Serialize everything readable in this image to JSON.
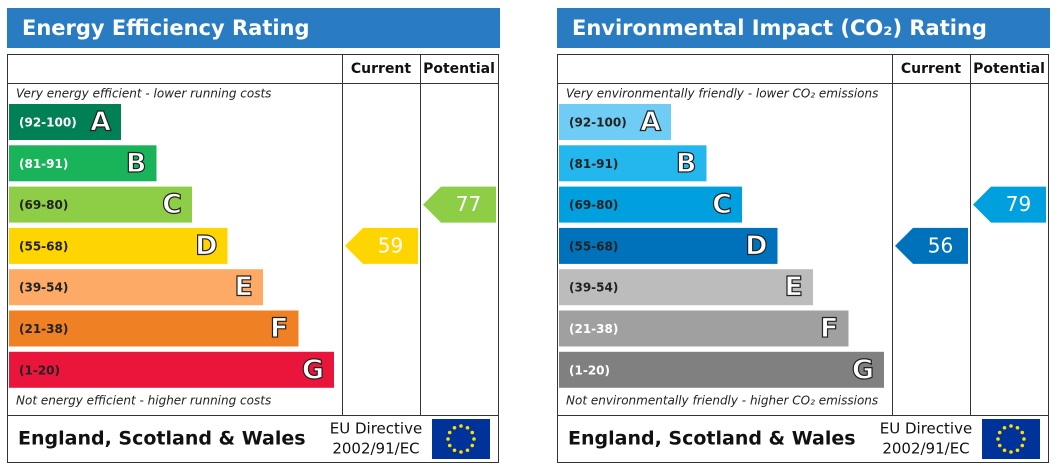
{
  "chart_data": [
    {
      "type": "rating",
      "title": "Energy Efficiency Rating",
      "columns": [
        "Current",
        "Potential"
      ],
      "top_note": "Very energy efficient - lower running costs",
      "bottom_note": "Not energy efficient - higher running costs",
      "bands": [
        {
          "range": "(92-100)",
          "letter": "A",
          "color": "#008054",
          "text_color": "#ffffff"
        },
        {
          "range": "(81-91)",
          "letter": "B",
          "color": "#19b459",
          "text_color": "#ffffff"
        },
        {
          "range": "(69-80)",
          "letter": "C",
          "color": "#8dce46",
          "text_color": "#222222"
        },
        {
          "range": "(55-68)",
          "letter": "D",
          "color": "#ffd500",
          "text_color": "#222222"
        },
        {
          "range": "(39-54)",
          "letter": "E",
          "color": "#fcaa65",
          "text_color": "#222222"
        },
        {
          "range": "(21-38)",
          "letter": "F",
          "color": "#ef8023",
          "text_color": "#222222"
        },
        {
          "range": "(1-20)",
          "letter": "G",
          "color": "#e9153b",
          "text_color": "#222222"
        }
      ],
      "current": 59,
      "potential": 77,
      "footer": {
        "region": "England, Scotland & Wales",
        "directive": "EU Directive",
        "code": "2002/91/EC"
      }
    },
    {
      "type": "rating",
      "title": "Environmental Impact (CO₂) Rating",
      "columns": [
        "Current",
        "Potential"
      ],
      "top_note": "Very environmentally friendly - lower CO₂ emissions",
      "bottom_note": "Not environmentally friendly - higher CO₂ emissions",
      "bands": [
        {
          "range": "(92-100)",
          "letter": "A",
          "color": "#6fcdf5",
          "text_color": "#222222"
        },
        {
          "range": "(81-91)",
          "letter": "B",
          "color": "#24b7ee",
          "text_color": "#222222"
        },
        {
          "range": "(69-80)",
          "letter": "C",
          "color": "#009fde",
          "text_color": "#222222"
        },
        {
          "range": "(55-68)",
          "letter": "D",
          "color": "#0072bb",
          "text_color": "#222222"
        },
        {
          "range": "(39-54)",
          "letter": "E",
          "color": "#bcbcbc",
          "text_color": "#222222"
        },
        {
          "range": "(21-38)",
          "letter": "F",
          "color": "#a0a0a0",
          "text_color": "#ffffff"
        },
        {
          "range": "(1-20)",
          "letter": "G",
          "color": "#808080",
          "text_color": "#ffffff"
        }
      ],
      "current": 56,
      "potential": 79,
      "footer": {
        "region": "England, Scotland & Wales",
        "directive": "EU Directive",
        "code": "2002/91/EC"
      }
    }
  ]
}
